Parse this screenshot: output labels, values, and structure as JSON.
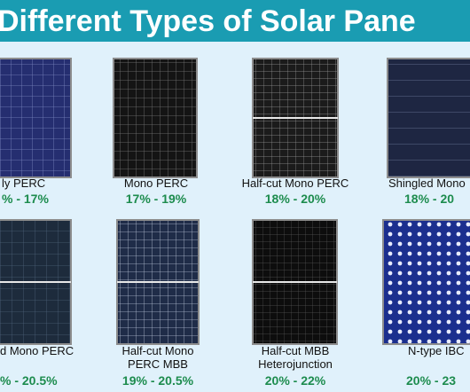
{
  "header": {
    "title": "Different Types of Solar Pane"
  },
  "panels": [
    {
      "label": [
        "ly PERC"
      ],
      "efficiency": "% - 17%"
    },
    {
      "label": [
        "Mono PERC"
      ],
      "efficiency": "17% - 19%"
    },
    {
      "label": [
        "Half-cut Mono PERC"
      ],
      "efficiency": "18% - 20%"
    },
    {
      "label": [
        "Shingled Mono"
      ],
      "efficiency": "18% - 20"
    },
    {
      "label": [
        "d Mono PERC"
      ],
      "efficiency": "% - 20.5%"
    },
    {
      "label": [
        "Half-cut Mono",
        "PERC MBB"
      ],
      "efficiency": "19% - 20.5%"
    },
    {
      "label": [
        "Half-cut MBB",
        "Heterojunction"
      ],
      "efficiency": "20% - 22%"
    },
    {
      "label": [
        "N-type IBC"
      ],
      "efficiency": "20% - 23"
    }
  ]
}
